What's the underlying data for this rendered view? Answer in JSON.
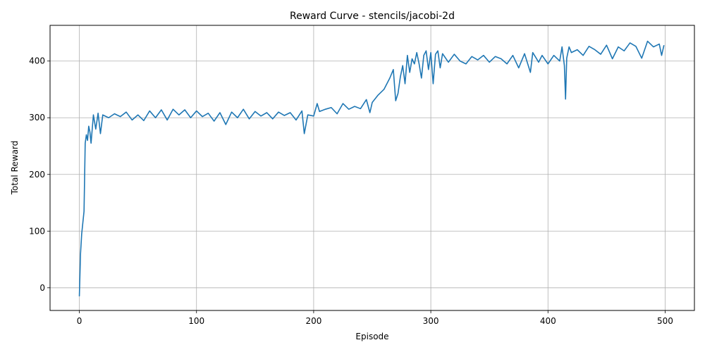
{
  "chart_data": {
    "type": "line",
    "title": "Reward Curve - stencils/jacobi-2d",
    "xlabel": "Episode",
    "ylabel": "Total Reward",
    "xlim": [
      -25,
      525
    ],
    "ylim": [
      -40,
      463
    ],
    "xticks": [
      0,
      100,
      200,
      300,
      400,
      500
    ],
    "yticks": [
      0,
      100,
      200,
      300,
      400
    ],
    "grid": true,
    "line_color": "#1f77b4",
    "series": [
      {
        "x": [
          0,
          1,
          2,
          3,
          4,
          5,
          6,
          7,
          8,
          9,
          10,
          12,
          14,
          16,
          18,
          20,
          25,
          30,
          35,
          40,
          45,
          50,
          55,
          60,
          65,
          70,
          75,
          80,
          85,
          90,
          95,
          100,
          105,
          110,
          115,
          120,
          125,
          130,
          135,
          140,
          145,
          150,
          155,
          160,
          165,
          170,
          175,
          180,
          185,
          190,
          192,
          195,
          200,
          203,
          205,
          210,
          215,
          220,
          225,
          230,
          235,
          240,
          245,
          248,
          250,
          255,
          260,
          265,
          268,
          270,
          272,
          274,
          276,
          278,
          280,
          282,
          284,
          286,
          288,
          290,
          292,
          294,
          296,
          298,
          300,
          302,
          304,
          306,
          308,
          310,
          315,
          320,
          325,
          330,
          335,
          340,
          345,
          350,
          355,
          360,
          365,
          370,
          375,
          380,
          385,
          387,
          390,
          392,
          395,
          400,
          405,
          410,
          412,
          414,
          415,
          416,
          418,
          420,
          425,
          430,
          435,
          440,
          445,
          450,
          455,
          460,
          465,
          470,
          475,
          480,
          485,
          490,
          495,
          497,
          499
        ],
        "y": [
          -15,
          60,
          95,
          115,
          135,
          255,
          270,
          260,
          285,
          275,
          255,
          305,
          280,
          308,
          272,
          305,
          300,
          307,
          302,
          310,
          296,
          305,
          295,
          312,
          300,
          314,
          296,
          315,
          305,
          314,
          300,
          312,
          302,
          308,
          294,
          309,
          288,
          310,
          300,
          315,
          298,
          311,
          303,
          309,
          298,
          310,
          304,
          309,
          296,
          312,
          272,
          305,
          303,
          325,
          311,
          315,
          318,
          307,
          325,
          315,
          320,
          316,
          332,
          309,
          327,
          340,
          350,
          370,
          385,
          330,
          343,
          372,
          392,
          360,
          410,
          380,
          404,
          395,
          415,
          395,
          370,
          410,
          418,
          385,
          415,
          360,
          412,
          418,
          388,
          413,
          398,
          412,
          400,
          395,
          408,
          402,
          410,
          398,
          408,
          404,
          395,
          410,
          388,
          413,
          380,
          415,
          405,
          398,
          410,
          395,
          410,
          400,
          425,
          392,
          333,
          405,
          425,
          415,
          420,
          410,
          426,
          420,
          412,
          428,
          404,
          425,
          418,
          432,
          426,
          405,
          435,
          425,
          430,
          410,
          428
        ]
      }
    ]
  }
}
